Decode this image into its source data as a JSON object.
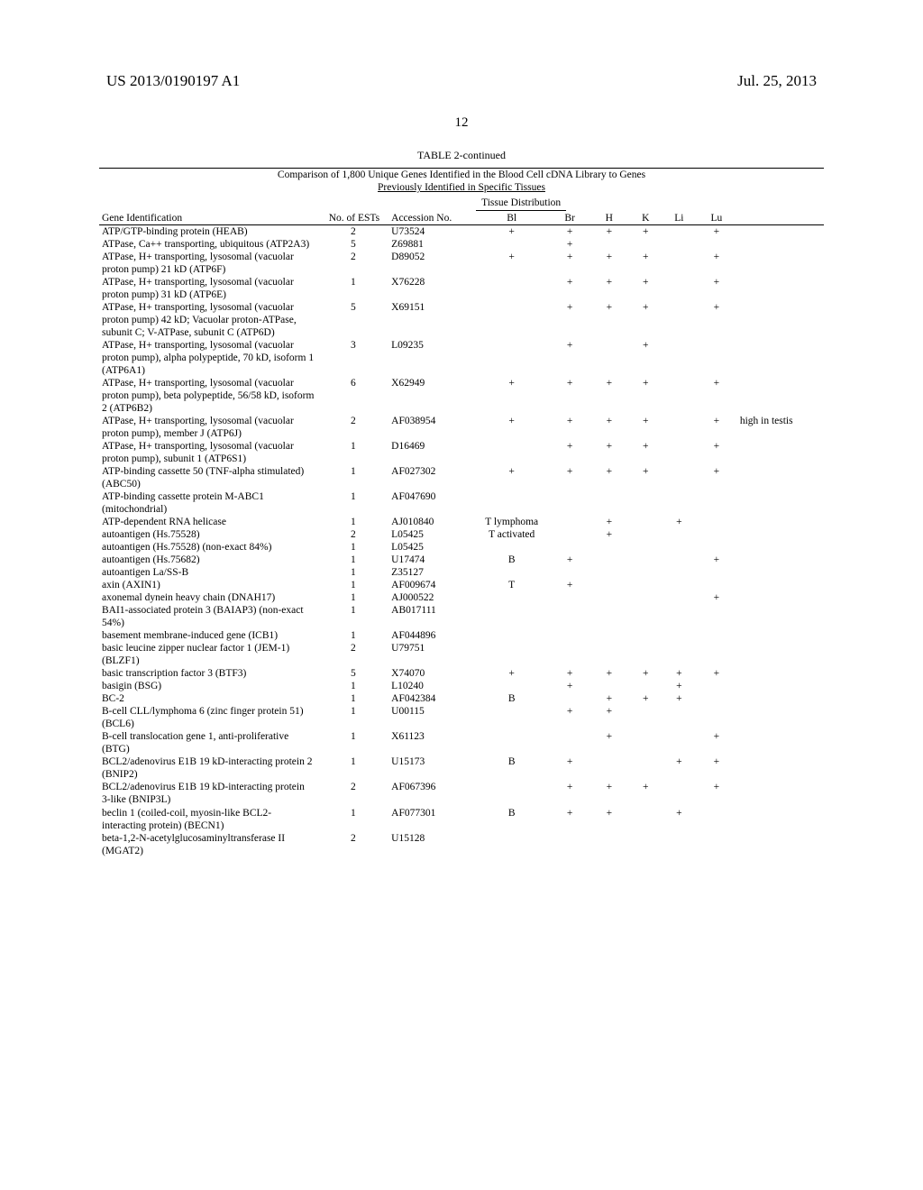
{
  "header": {
    "left": "US 2013/0190197 A1",
    "right": "Jul. 25, 2013"
  },
  "page_number": "12",
  "table": {
    "title": "TABLE 2-continued",
    "subtitle1": "Comparison of 1,800 Unique Genes Identified in the Blood Cell cDNA Library to Genes",
    "subtitle2": "Previously Identified in Specific Tissues",
    "tissue_header": "Tissue Distribution",
    "columns": {
      "gene": "Gene Identification",
      "ests": "No. of ESTs",
      "acc": "Accession No.",
      "bl": "Bl",
      "br": "Br",
      "h": "H",
      "k": "K",
      "li": "Li",
      "lu": "Lu"
    },
    "rows": [
      {
        "gene": "ATP/GTP-binding protein (HEAB)",
        "ests": "2",
        "acc": "U73524",
        "bl": "+",
        "br": "+",
        "h": "+",
        "k": "+",
        "li": "",
        "lu": "+",
        "note": ""
      },
      {
        "gene": "ATPase, Ca++ transporting, ubiquitous (ATP2A3)",
        "ests": "5",
        "acc": "Z69881",
        "bl": "",
        "br": "+",
        "h": "",
        "k": "",
        "li": "",
        "lu": "",
        "note": ""
      },
      {
        "gene": "ATPase, H+ transporting, lysosomal (vacuolar proton pump) 21 kD (ATP6F)",
        "ests": "2",
        "acc": "D89052",
        "bl": "+",
        "br": "+",
        "h": "+",
        "k": "+",
        "li": "",
        "lu": "+",
        "note": ""
      },
      {
        "gene": "ATPase, H+ transporting, lysosomal (vacuolar proton pump) 31 kD (ATP6E)",
        "ests": "1",
        "acc": "X76228",
        "bl": "",
        "br": "+",
        "h": "+",
        "k": "+",
        "li": "",
        "lu": "+",
        "note": ""
      },
      {
        "gene": "ATPase, H+ transporting, lysosomal (vacuolar proton pump) 42 kD; Vacuolar proton-ATPase, subunit C; V-ATPase, subunit C (ATP6D)",
        "ests": "5",
        "acc": "X69151",
        "bl": "",
        "br": "+",
        "h": "+",
        "k": "+",
        "li": "",
        "lu": "+",
        "note": ""
      },
      {
        "gene": "ATPase, H+ transporting, lysosomal (vacuolar proton pump), alpha polypeptide, 70 kD, isoform 1 (ATP6A1)",
        "ests": "3",
        "acc": "L09235",
        "bl": "",
        "br": "+",
        "h": "",
        "k": "+",
        "li": "",
        "lu": "",
        "note": ""
      },
      {
        "gene": "ATPase, H+ transporting, lysosomal (vacuolar proton pump), beta polypeptide, 56/58 kD, isoform 2 (ATP6B2)",
        "ests": "6",
        "acc": "X62949",
        "bl": "+",
        "br": "+",
        "h": "+",
        "k": "+",
        "li": "",
        "lu": "+",
        "note": ""
      },
      {
        "gene": "ATPase, H+ transporting, lysosomal (vacuolar proton pump), member J (ATP6J)",
        "ests": "2",
        "acc": "AF038954",
        "bl": "+",
        "br": "+",
        "h": "+",
        "k": "+",
        "li": "",
        "lu": "+",
        "note": "high in testis"
      },
      {
        "gene": "ATPase, H+ transporting, lysosomal (vacuolar proton pump), subunit 1 (ATP6S1)",
        "ests": "1",
        "acc": "D16469",
        "bl": "",
        "br": "+",
        "h": "+",
        "k": "+",
        "li": "",
        "lu": "+",
        "note": ""
      },
      {
        "gene": "ATP-binding cassette 50 (TNF-alpha stimulated) (ABC50)",
        "ests": "1",
        "acc": "AF027302",
        "bl": "+",
        "br": "+",
        "h": "+",
        "k": "+",
        "li": "",
        "lu": "+",
        "note": ""
      },
      {
        "gene": "ATP-binding cassette protein M-ABC1 (mitochondrial)",
        "ests": "1",
        "acc": "AF047690",
        "bl": "",
        "br": "",
        "h": "",
        "k": "",
        "li": "",
        "lu": "",
        "note": ""
      },
      {
        "gene": "ATP-dependent RNA helicase",
        "ests": "1",
        "acc": "AJ010840",
        "bl": "T lymphoma",
        "br": "",
        "h": "+",
        "k": "",
        "li": "+",
        "lu": "",
        "note": ""
      },
      {
        "gene": "autoantigen (Hs.75528)",
        "ests": "2",
        "acc": "L05425",
        "bl": "T activated",
        "br": "",
        "h": "+",
        "k": "",
        "li": "",
        "lu": "",
        "note": ""
      },
      {
        "gene": "autoantigen (Hs.75528) (non-exact 84%)",
        "ests": "1",
        "acc": "L05425",
        "bl": "",
        "br": "",
        "h": "",
        "k": "",
        "li": "",
        "lu": "",
        "note": ""
      },
      {
        "gene": "autoantigen (Hs.75682)",
        "ests": "1",
        "acc": "U17474",
        "bl": "B",
        "br": "+",
        "h": "",
        "k": "",
        "li": "",
        "lu": "+",
        "note": ""
      },
      {
        "gene": "autoantigen La/SS-B",
        "ests": "1",
        "acc": "Z35127",
        "bl": "",
        "br": "",
        "h": "",
        "k": "",
        "li": "",
        "lu": "",
        "note": ""
      },
      {
        "gene": "axin (AXIN1)",
        "ests": "1",
        "acc": "AF009674",
        "bl": "T",
        "br": "+",
        "h": "",
        "k": "",
        "li": "",
        "lu": "",
        "note": ""
      },
      {
        "gene": "axonemal dynein heavy chain (DNAH17)",
        "ests": "1",
        "acc": "AJ000522",
        "bl": "",
        "br": "",
        "h": "",
        "k": "",
        "li": "",
        "lu": "+",
        "note": ""
      },
      {
        "gene": "BAI1-associated protein 3 (BAIAP3) (non-exact 54%)",
        "ests": "1",
        "acc": "AB017111",
        "bl": "",
        "br": "",
        "h": "",
        "k": "",
        "li": "",
        "lu": "",
        "note": ""
      },
      {
        "gene": "basement membrane-induced gene (ICB1)",
        "ests": "1",
        "acc": "AF044896",
        "bl": "",
        "br": "",
        "h": "",
        "k": "",
        "li": "",
        "lu": "",
        "note": ""
      },
      {
        "gene": "basic leucine zipper nuclear factor 1 (JEM-1) (BLZF1)",
        "ests": "2",
        "acc": "U79751",
        "bl": "",
        "br": "",
        "h": "",
        "k": "",
        "li": "",
        "lu": "",
        "note": ""
      },
      {
        "gene": "basic transcription factor 3 (BTF3)",
        "ests": "5",
        "acc": "X74070",
        "bl": "+",
        "br": "+",
        "h": "+",
        "k": "+",
        "li": "+",
        "lu": "+",
        "note": ""
      },
      {
        "gene": "basigin (BSG)",
        "ests": "1",
        "acc": "L10240",
        "bl": "",
        "br": "+",
        "h": "",
        "k": "",
        "li": "+",
        "lu": "",
        "note": ""
      },
      {
        "gene": "BC-2",
        "ests": "1",
        "acc": "AF042384",
        "bl": "B",
        "br": "",
        "h": "+",
        "k": "+",
        "li": "+",
        "lu": "",
        "note": ""
      },
      {
        "gene": "B-cell CLL/lymphoma 6 (zinc finger protein 51) (BCL6)",
        "ests": "1",
        "acc": "U00115",
        "bl": "",
        "br": "+",
        "h": "+",
        "k": "",
        "li": "",
        "lu": "",
        "note": ""
      },
      {
        "gene": "B-cell translocation gene 1, anti-proliferative (BTG)",
        "ests": "1",
        "acc": "X61123",
        "bl": "",
        "br": "",
        "h": "+",
        "k": "",
        "li": "",
        "lu": "+",
        "note": ""
      },
      {
        "gene": "BCL2/adenovirus E1B 19 kD-interacting protein 2 (BNIP2)",
        "ests": "1",
        "acc": "U15173",
        "bl": "B",
        "br": "+",
        "h": "",
        "k": "",
        "li": "+",
        "lu": "+",
        "note": ""
      },
      {
        "gene": "BCL2/adenovirus E1B 19 kD-interacting protein 3-like (BNIP3L)",
        "ests": "2",
        "acc": "AF067396",
        "bl": "",
        "br": "+",
        "h": "+",
        "k": "+",
        "li": "",
        "lu": "+",
        "note": ""
      },
      {
        "gene": "beclin 1 (coiled-coil, myosin-like BCL2-interacting protein) (BECN1)",
        "ests": "1",
        "acc": "AF077301",
        "bl": "B",
        "br": "+",
        "h": "+",
        "k": "",
        "li": "+",
        "lu": "",
        "note": ""
      },
      {
        "gene": "beta-1,2-N-acetylglucosaminyltransferase II (MGAT2)",
        "ests": "2",
        "acc": "U15128",
        "bl": "",
        "br": "",
        "h": "",
        "k": "",
        "li": "",
        "lu": "",
        "note": ""
      }
    ]
  }
}
